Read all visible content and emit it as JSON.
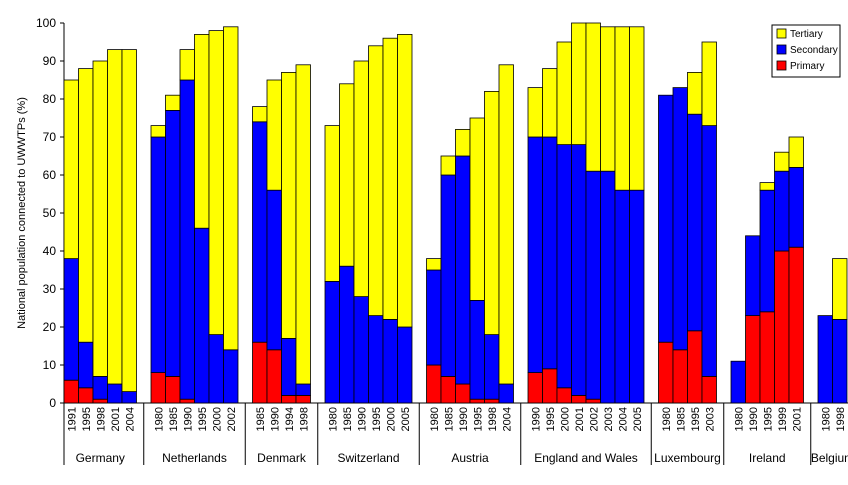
{
  "chart_data": {
    "type": "bar",
    "stacked": true,
    "title": "",
    "xlabel": "",
    "ylabel": "National population connected to UWWTPs (%)",
    "ylim": [
      0,
      100
    ],
    "yticks": [
      0,
      10,
      20,
      30,
      40,
      50,
      60,
      70,
      80,
      90,
      100
    ],
    "grid": false,
    "legend_position": "top-right",
    "colors": {
      "Tertiary": "#ffff00",
      "Secondary": "#0000ff",
      "Primary": "#ff0000"
    },
    "legend": [
      "Tertiary",
      "Secondary",
      "Primary"
    ],
    "groups": [
      {
        "name": "Germany",
        "bars": [
          {
            "year": "1991",
            "primary": 6,
            "secondary": 32,
            "tertiary": 47
          },
          {
            "year": "1995",
            "primary": 4,
            "secondary": 12,
            "tertiary": 72
          },
          {
            "year": "1998",
            "primary": 1,
            "secondary": 6,
            "tertiary": 83
          },
          {
            "year": "2001",
            "primary": 0,
            "secondary": 5,
            "tertiary": 88
          },
          {
            "year": "2004",
            "primary": 0,
            "secondary": 3,
            "tertiary": 90
          }
        ]
      },
      {
        "name": "Netherlands",
        "bars": [
          {
            "year": "1980",
            "primary": 8,
            "secondary": 62,
            "tertiary": 3
          },
          {
            "year": "1985",
            "primary": 7,
            "secondary": 70,
            "tertiary": 4
          },
          {
            "year": "1990",
            "primary": 1,
            "secondary": 84,
            "tertiary": 8
          },
          {
            "year": "1995",
            "primary": 0,
            "secondary": 46,
            "tertiary": 51
          },
          {
            "year": "2000",
            "primary": 0,
            "secondary": 18,
            "tertiary": 80
          },
          {
            "year": "2002",
            "primary": 0,
            "secondary": 14,
            "tertiary": 85
          }
        ]
      },
      {
        "name": "Denmark",
        "bars": [
          {
            "year": "1985",
            "primary": 16,
            "secondary": 58,
            "tertiary": 4
          },
          {
            "year": "1990",
            "primary": 14,
            "secondary": 42,
            "tertiary": 29
          },
          {
            "year": "1994",
            "primary": 2,
            "secondary": 15,
            "tertiary": 70
          },
          {
            "year": "1998",
            "primary": 2,
            "secondary": 3,
            "tertiary": 84
          }
        ]
      },
      {
        "name": "Switzerland",
        "bars": [
          {
            "year": "1980",
            "primary": 0,
            "secondary": 32,
            "tertiary": 41
          },
          {
            "year": "1985",
            "primary": 0,
            "secondary": 36,
            "tertiary": 48
          },
          {
            "year": "1990",
            "primary": 0,
            "secondary": 28,
            "tertiary": 62
          },
          {
            "year": "1995",
            "primary": 0,
            "secondary": 23,
            "tertiary": 71
          },
          {
            "year": "2000",
            "primary": 0,
            "secondary": 22,
            "tertiary": 74
          },
          {
            "year": "2005",
            "primary": 0,
            "secondary": 20,
            "tertiary": 77
          }
        ]
      },
      {
        "name": "Austria",
        "bars": [
          {
            "year": "1980",
            "primary": 10,
            "secondary": 25,
            "tertiary": 3
          },
          {
            "year": "1985",
            "primary": 7,
            "secondary": 53,
            "tertiary": 5
          },
          {
            "year": "1990",
            "primary": 5,
            "secondary": 60,
            "tertiary": 7
          },
          {
            "year": "1995",
            "primary": 1,
            "secondary": 26,
            "tertiary": 48
          },
          {
            "year": "1998",
            "primary": 1,
            "secondary": 17,
            "tertiary": 64
          },
          {
            "year": "2004",
            "primary": 0,
            "secondary": 5,
            "tertiary": 84
          }
        ]
      },
      {
        "name": "England and Wales",
        "bars": [
          {
            "year": "1990",
            "primary": 8,
            "secondary": 62,
            "tertiary": 13
          },
          {
            "year": "1995",
            "primary": 9,
            "secondary": 61,
            "tertiary": 18
          },
          {
            "year": "2000",
            "primary": 4,
            "secondary": 64,
            "tertiary": 27
          },
          {
            "year": "2001",
            "primary": 2,
            "secondary": 66,
            "tertiary": 32
          },
          {
            "year": "2002",
            "primary": 1,
            "secondary": 60,
            "tertiary": 39
          },
          {
            "year": "2003",
            "primary": 0,
            "secondary": 61,
            "tertiary": 38
          },
          {
            "year": "2004",
            "primary": 0,
            "secondary": 56,
            "tertiary": 43
          },
          {
            "year": "2005",
            "primary": 0,
            "secondary": 56,
            "tertiary": 43
          }
        ]
      },
      {
        "name": "Luxembourg",
        "bars": [
          {
            "year": "1980",
            "primary": 16,
            "secondary": 65,
            "tertiary": 0
          },
          {
            "year": "1985",
            "primary": 14,
            "secondary": 69,
            "tertiary": 0
          },
          {
            "year": "1995",
            "primary": 19,
            "secondary": 57,
            "tertiary": 11
          },
          {
            "year": "2003",
            "primary": 7,
            "secondary": 66,
            "tertiary": 22
          }
        ]
      },
      {
        "name": "Ireland",
        "bars": [
          {
            "year": "1980",
            "primary": 0,
            "secondary": 11,
            "tertiary": 0
          },
          {
            "year": "1990",
            "primary": 23,
            "secondary": 21,
            "tertiary": 0
          },
          {
            "year": "1995",
            "primary": 24,
            "secondary": 32,
            "tertiary": 2
          },
          {
            "year": "1999",
            "primary": 40,
            "secondary": 21,
            "tertiary": 5
          },
          {
            "year": "2001",
            "primary": 41,
            "secondary": 21,
            "tertiary": 8
          }
        ]
      },
      {
        "name": "Belgium",
        "bars": [
          {
            "year": "1980",
            "primary": 0,
            "secondary": 23,
            "tertiary": 0
          },
          {
            "year": "1998",
            "primary": 0,
            "secondary": 22,
            "tertiary": 16
          }
        ]
      }
    ]
  }
}
